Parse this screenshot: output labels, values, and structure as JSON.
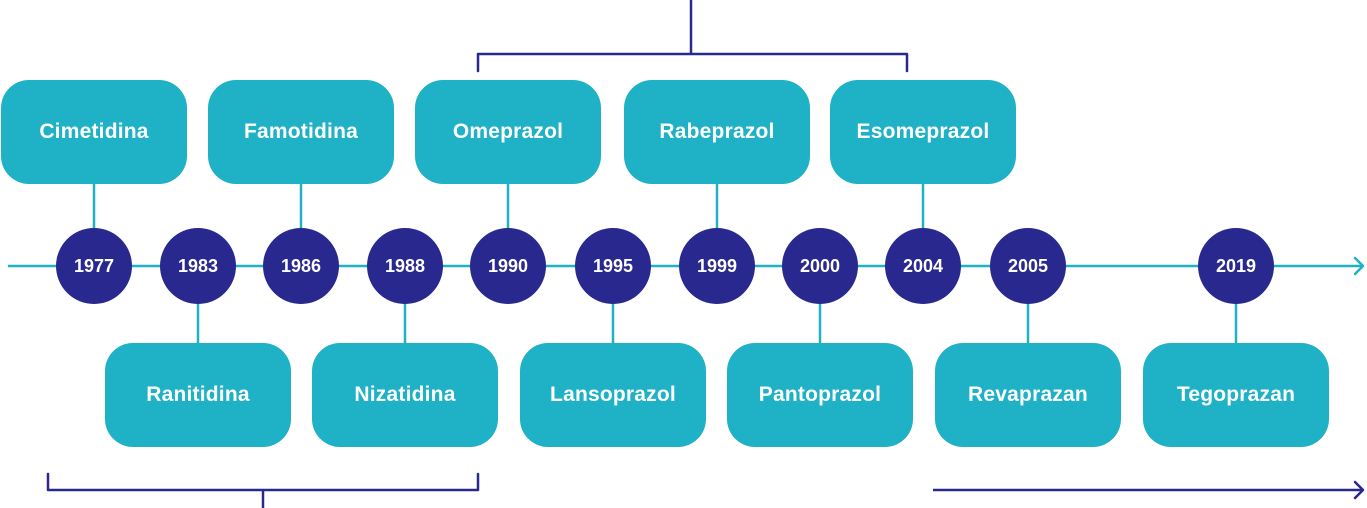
{
  "colors": {
    "box": "#1fb1c5",
    "year": "#28288f",
    "line": "#1fb1c5",
    "bracket": "#28288f"
  },
  "events": [
    {
      "year": "1977",
      "drug": "Cimetidina",
      "side": "top"
    },
    {
      "year": "1983",
      "drug": "Ranitidina",
      "side": "bottom"
    },
    {
      "year": "1986",
      "drug": "Famotidina",
      "side": "top"
    },
    {
      "year": "1988",
      "drug": "Nizatidina",
      "side": "bottom"
    },
    {
      "year": "1990",
      "drug": "Omeprazol",
      "side": "top"
    },
    {
      "year": "1995",
      "drug": "Lansoprazol",
      "side": "bottom"
    },
    {
      "year": "1999",
      "drug": "Rabeprazol",
      "side": "top"
    },
    {
      "year": "2000",
      "drug": "Pantoprazol",
      "side": "bottom"
    },
    {
      "year": "2004",
      "drug": "Esomeprazol",
      "side": "top"
    },
    {
      "year": "2005",
      "drug": "Revaprazan",
      "side": "bottom"
    },
    {
      "year": "2019",
      "drug": "Tegoprazan",
      "side": "bottom"
    }
  ]
}
